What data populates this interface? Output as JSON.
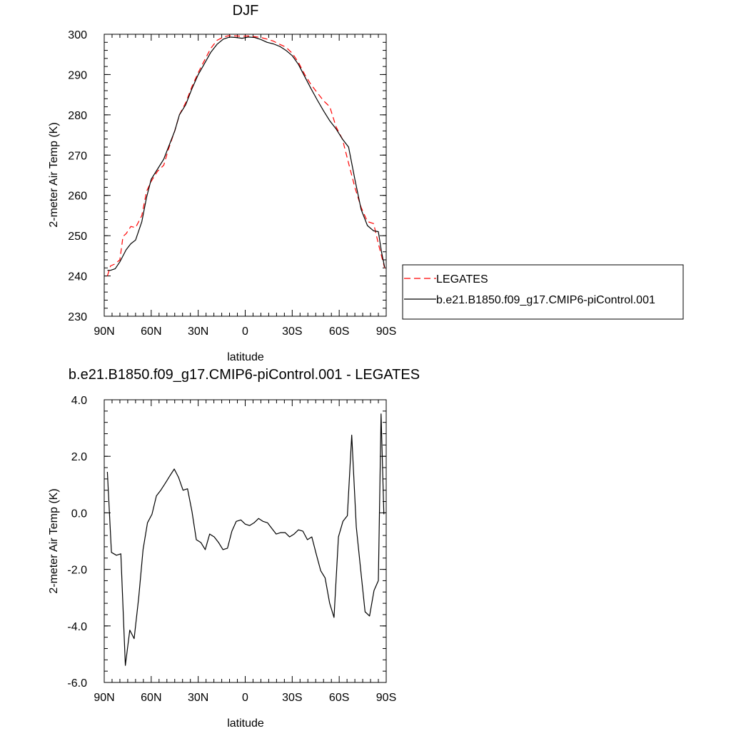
{
  "chart_data": [
    {
      "type": "line",
      "title": "DJF",
      "xlabel": "latitude",
      "ylabel": "2-meter Air Temp (K)",
      "xlim": [
        90,
        -90
      ],
      "ylim": [
        230,
        300
      ],
      "x_ticks": [
        90,
        60,
        30,
        0,
        -30,
        -60,
        -90
      ],
      "x_tick_labels": [
        "90N",
        "60N",
        "30N",
        "0",
        "30S",
        "60S",
        "90S"
      ],
      "y_ticks": [
        230,
        240,
        250,
        260,
        270,
        280,
        290,
        300
      ],
      "y_tick_labels": [
        "230",
        "240",
        "250",
        "260",
        "270",
        "280",
        "290",
        "300"
      ],
      "legend_placement": "right",
      "grid": false,
      "series": [
        {
          "name": "LEGATES",
          "color": "#ff0000",
          "style": "dashed",
          "x": [
            88,
            86,
            83,
            80,
            78,
            76,
            73,
            70,
            66,
            63,
            60,
            56,
            52,
            49,
            45,
            42,
            38,
            34,
            30,
            26,
            22,
            18,
            14,
            10,
            6,
            2,
            -2,
            -6,
            -10,
            -14,
            -18,
            -22,
            -26,
            -30,
            -34,
            -38,
            -42,
            -46,
            -50,
            -54,
            -58,
            -62,
            -66,
            -70,
            -74,
            -78,
            -82,
            -85,
            -87,
            -89
          ],
          "y": [
            240,
            242.5,
            243,
            244,
            249.8,
            250.5,
            252.3,
            252,
            255,
            261,
            263.5,
            266,
            267.5,
            271.5,
            276,
            280,
            283,
            287,
            290.5,
            293.5,
            296.5,
            298.5,
            299.3,
            299.7,
            299.6,
            299.5,
            299.6,
            299.4,
            299.2,
            298.8,
            298.3,
            297.5,
            296.8,
            295.3,
            293,
            290,
            287.5,
            285.5,
            283.5,
            282,
            277,
            274,
            268,
            262,
            257,
            253.5,
            253,
            248,
            245,
            242
          ]
        },
        {
          "name": "b.e21.B1850.f09_g17.CMIP6-piControl.001",
          "color": "#000000",
          "style": "solid",
          "x": [
            88,
            86,
            83,
            80,
            78,
            76,
            73,
            70,
            66,
            63,
            60,
            56,
            52,
            49,
            45,
            42,
            38,
            34,
            30,
            26,
            22,
            18,
            14,
            10,
            6,
            2,
            -2,
            -6,
            -10,
            -14,
            -18,
            -22,
            -26,
            -30,
            -34,
            -38,
            -42,
            -46,
            -50,
            -54,
            -58,
            -62,
            -66,
            -70,
            -74,
            -78,
            -82,
            -85,
            -87,
            -89
          ],
          "y": [
            241.4,
            241.4,
            241.8,
            243.5,
            245,
            246.5,
            248,
            248.9,
            253.5,
            259.5,
            264,
            266.5,
            269,
            272,
            276,
            280,
            282.5,
            286.5,
            290,
            292.7,
            295.5,
            297.5,
            298.8,
            299.3,
            299.2,
            299.0,
            299.3,
            299.2,
            298.7,
            298.0,
            297.6,
            297.0,
            296.0,
            294.7,
            292.5,
            289.5,
            286.5,
            283.7,
            281.0,
            278.5,
            276.5,
            274.0,
            272.0,
            264.0,
            256.5,
            252.5,
            251.2,
            251.0,
            246.0,
            242.2
          ]
        }
      ]
    },
    {
      "type": "line",
      "title": "b.e21.B1850.f09_g17.CMIP6-piControl.001 - LEGATES",
      "xlabel": "latitude",
      "ylabel": "2-meter Air Temp (K)",
      "xlim": [
        90,
        -90
      ],
      "ylim": [
        -6,
        4
      ],
      "x_ticks": [
        90,
        60,
        30,
        0,
        -30,
        -60,
        -90
      ],
      "x_tick_labels": [
        "90N",
        "60N",
        "30N",
        "0",
        "30S",
        "60S",
        "90S"
      ],
      "y_ticks": [
        -6,
        -4,
        -2,
        0,
        2,
        4
      ],
      "y_tick_labels": [
        "-6.0",
        "-4.0",
        "-2.0",
        "0.0",
        "2.0",
        "4.0"
      ],
      "grid": false,
      "series": [
        {
          "color": "#000000",
          "style": "solid",
          "x": [
            88,
            85.4,
            82.2,
            79.4,
            76.5,
            73.7,
            70.9,
            68,
            65.2,
            62.4,
            59.5,
            56.7,
            53.9,
            51,
            48.2,
            45.3,
            42.5,
            39.7,
            36.8,
            34,
            31.2,
            28.3,
            25.5,
            22.7,
            19.8,
            17,
            14.2,
            11.3,
            8.5,
            5.7,
            2.8,
            0,
            -2.8,
            -5.7,
            -8.5,
            -11.3,
            -14.2,
            -17,
            -19.8,
            -22.7,
            -25.5,
            -28.3,
            -31.2,
            -34,
            -36.8,
            -39.7,
            -42.5,
            -45.3,
            -48.2,
            -51,
            -53.9,
            -56.7,
            -59.5,
            -62.4,
            -65.2,
            -68,
            -70.9,
            -73.7,
            -76.5,
            -79.4,
            -82.2,
            -85,
            -86.7,
            -88.5
          ],
          "y": [
            1.45,
            -1.4,
            -1.5,
            -1.45,
            -5.4,
            -4.15,
            -4.45,
            -3.0,
            -1.3,
            -0.35,
            -0.05,
            0.6,
            0.8,
            1.05,
            1.3,
            1.55,
            1.25,
            0.8,
            0.85,
            0.05,
            -0.95,
            -1.05,
            -1.3,
            -0.75,
            -0.85,
            -1.05,
            -1.3,
            -1.25,
            -0.65,
            -0.3,
            -0.25,
            -0.4,
            -0.45,
            -0.35,
            -0.2,
            -0.3,
            -0.35,
            -0.55,
            -0.75,
            -0.7,
            -0.7,
            -0.85,
            -0.75,
            -0.6,
            -0.65,
            -0.95,
            -0.85,
            -1.45,
            -2.05,
            -2.3,
            -3.2,
            -3.7,
            -0.85,
            -0.3,
            -0.1,
            2.75,
            -0.5,
            -2.0,
            -3.5,
            -3.65,
            -2.75,
            -2.4,
            3.5,
            -0.05
          ]
        }
      ]
    }
  ]
}
